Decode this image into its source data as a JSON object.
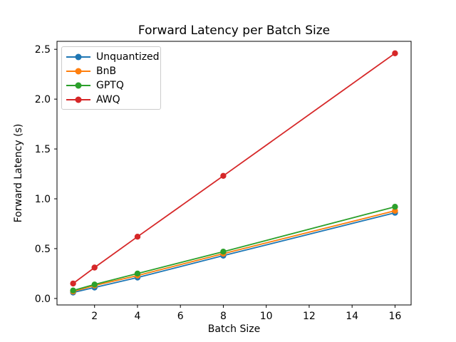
{
  "chart_data": {
    "type": "line",
    "title": "Forward Latency per Batch Size",
    "xlabel": "Batch Size",
    "ylabel": "Forward Latency (s)",
    "x": [
      1,
      2,
      4,
      8,
      16
    ],
    "series": [
      {
        "name": "Unquantized",
        "color": "#1f77b4",
        "values": [
          0.06,
          0.11,
          0.21,
          0.43,
          0.86
        ]
      },
      {
        "name": "BnB",
        "color": "#ff7f0e",
        "values": [
          0.07,
          0.13,
          0.23,
          0.45,
          0.88
        ]
      },
      {
        "name": "GPTQ",
        "color": "#2ca02c",
        "values": [
          0.08,
          0.14,
          0.25,
          0.47,
          0.92
        ]
      },
      {
        "name": "AWQ",
        "color": "#d62728",
        "values": [
          0.15,
          0.31,
          0.62,
          1.23,
          2.46
        ]
      }
    ],
    "xlim": [
      0.25,
      16.75
    ],
    "ylim": [
      -0.065,
      2.58
    ],
    "xticks": [
      2,
      4,
      6,
      8,
      10,
      12,
      14,
      16
    ],
    "yticks": [
      0.0,
      0.5,
      1.0,
      1.5,
      2.0,
      2.5
    ],
    "marker": "o",
    "grid": false,
    "legend_position": "upper left",
    "axis_color": "#000000",
    "background": "#ffffff"
  }
}
